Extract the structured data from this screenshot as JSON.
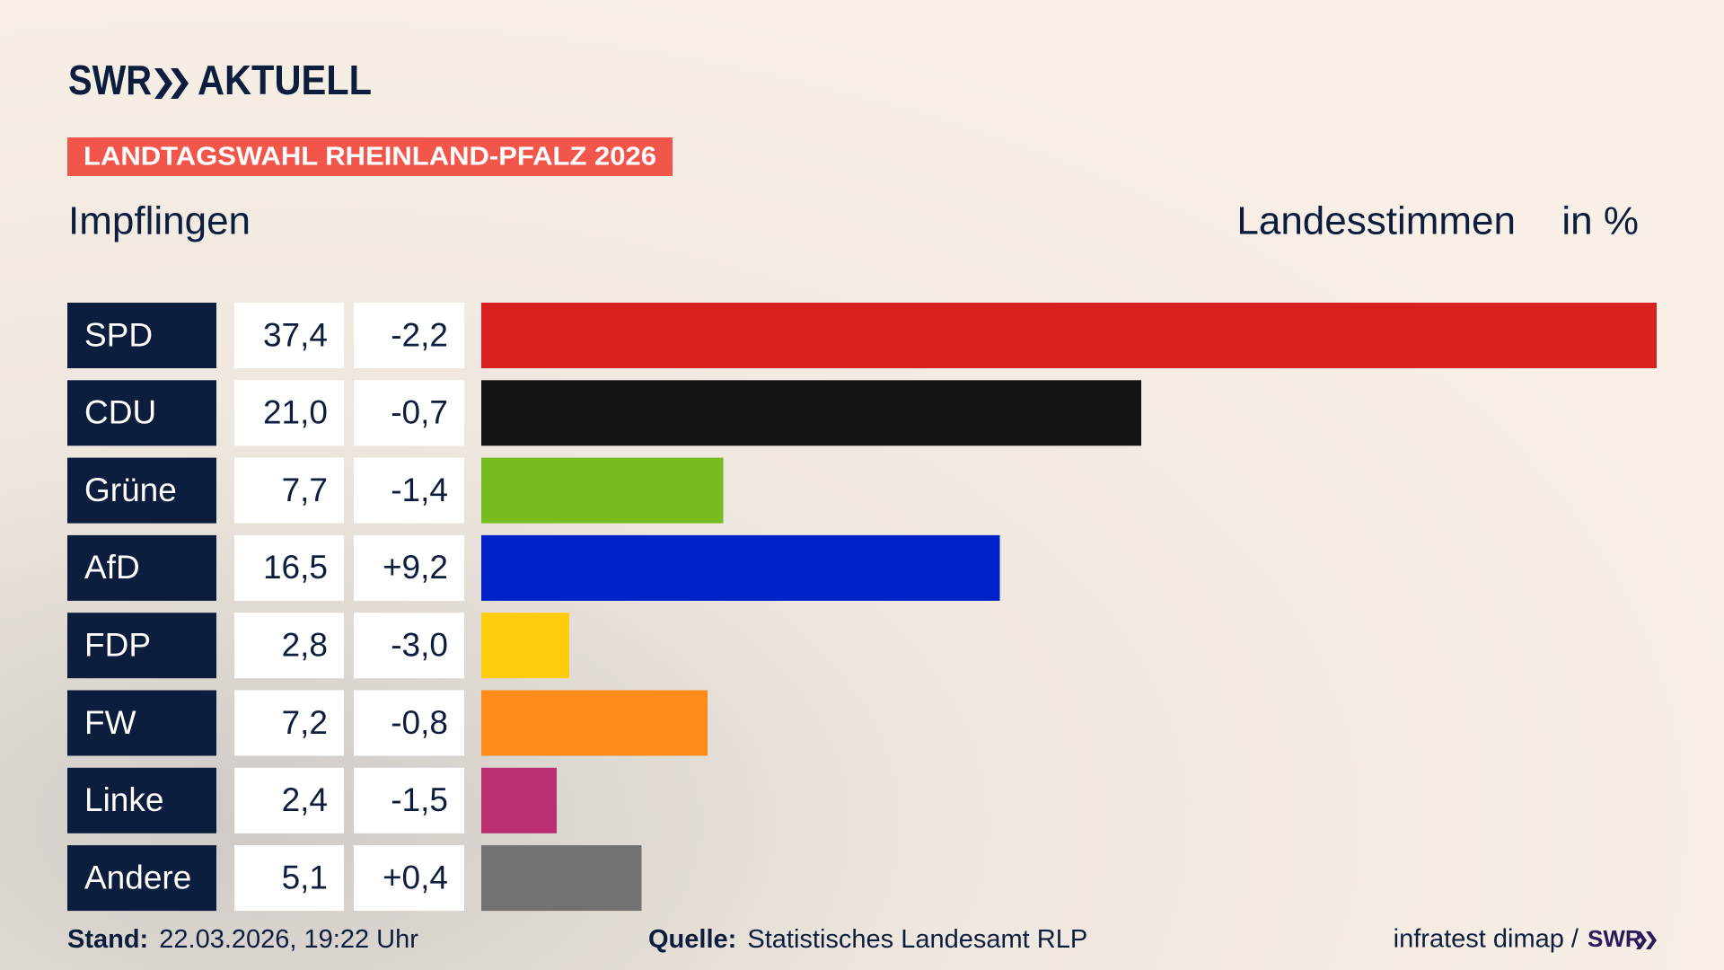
{
  "chart_data": {
    "type": "bar",
    "brand": "SWR",
    "brand_sub": "AKTUELL",
    "banner": "LANDTAGSWAHL RHEINLAND-PFALZ 2026",
    "title": "Impflingen",
    "subtitle": "Landesstimmen",
    "unit": "in %",
    "categories": [
      "SPD",
      "CDU",
      "Grüne",
      "AfD",
      "FDP",
      "FW",
      "Linke",
      "Andere"
    ],
    "values": [
      37.4,
      21.0,
      7.7,
      16.5,
      2.8,
      7.2,
      2.4,
      5.1
    ],
    "value_labels": [
      "37,4",
      "21,0",
      "7,7",
      "16,5",
      "2,8",
      "7,2",
      "2,4",
      "5,1"
    ],
    "changes": [
      "-2,2",
      "-0,7",
      "-1,4",
      "+9,2",
      "-3,0",
      "-0,8",
      "-1,5",
      "+0,4"
    ],
    "colors": [
      "#d92020",
      "#151515",
      "#77bc1f",
      "#0021c8",
      "#ffcc0c",
      "#ff8c1a",
      "#bb2f73",
      "#727272"
    ],
    "stand_label": "Stand:",
    "stand": "22.03.2026, 19:22 Uhr",
    "source_label": "Quelle:",
    "source": "Statistisches Landesamt RLP",
    "credit": "infratest dimap /",
    "credit_brand": "SWR"
  }
}
